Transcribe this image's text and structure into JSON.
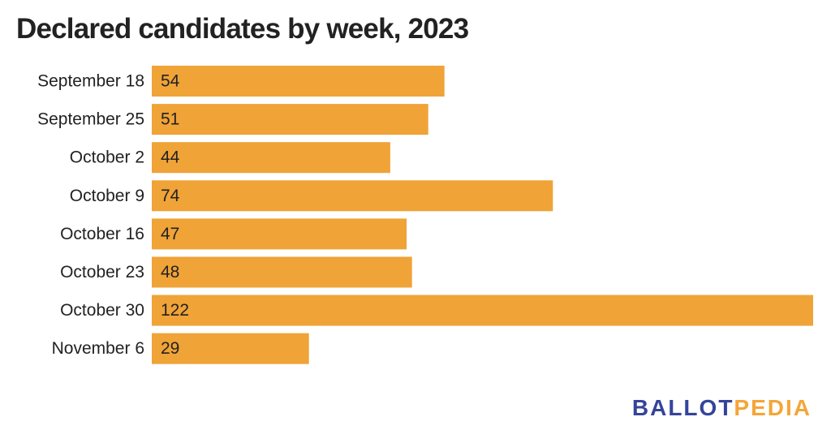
{
  "title": "Declared candidates by week, 2023",
  "colors": {
    "bar": "#f0a337",
    "text": "#222222",
    "logo_primary": "#35449a",
    "logo_accent": "#f4a637"
  },
  "logo": {
    "part_a": "BALLOT",
    "part_b": "PEDIA"
  },
  "chart_data": {
    "type": "bar",
    "orientation": "horizontal",
    "title": "Declared candidates by week, 2023",
    "xlabel": "",
    "ylabel": "",
    "grid": false,
    "legend": "none",
    "data_labels": "inside-left",
    "xlim": [
      0,
      122
    ],
    "categories": [
      "September 18",
      "September 25",
      "October 2",
      "October 9",
      "October 16",
      "October 23",
      "October 30",
      "November 6"
    ],
    "values": [
      54,
      51,
      44,
      74,
      47,
      48,
      122,
      29
    ]
  }
}
